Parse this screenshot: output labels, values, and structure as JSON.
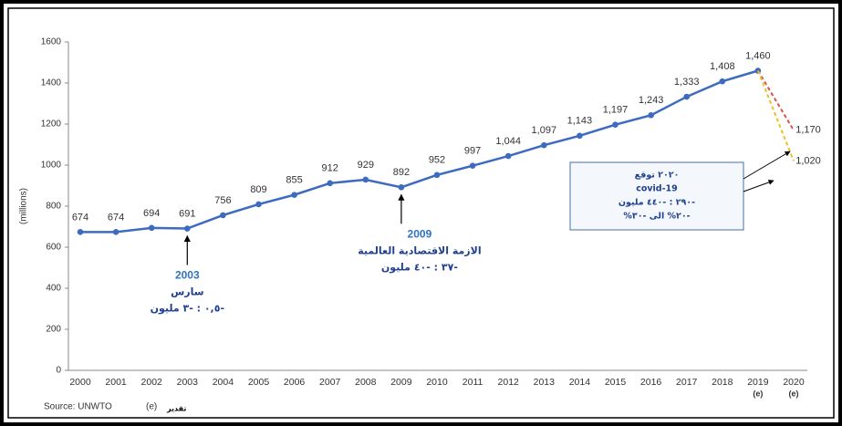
{
  "chart_data": {
    "type": "line",
    "y_label": "(millions)",
    "categories": [
      "2000",
      "2001",
      "2002",
      "2003",
      "2004",
      "2005",
      "2006",
      "2007",
      "2008",
      "2009",
      "2010",
      "2011",
      "2012",
      "2013",
      "2014",
      "2015",
      "2016",
      "2017",
      "2018",
      "2019",
      "2020"
    ],
    "category_notes": [
      null,
      null,
      null,
      null,
      null,
      null,
      null,
      null,
      null,
      null,
      null,
      null,
      null,
      null,
      null,
      null,
      null,
      null,
      null,
      "(e)",
      "(e)"
    ],
    "series": [
      {
        "color": "#3d6bbf",
        "values": [
          674,
          674,
          694,
          691,
          756,
          809,
          855,
          912,
          929,
          892,
          952,
          997,
          1044,
          1097,
          1143,
          1197,
          1243,
          1333,
          1408,
          1460,
          null
        ],
        "value_labels": [
          "674",
          "674",
          "694",
          "691",
          "756",
          "809",
          "855",
          "912",
          "929",
          "892",
          "952",
          "997",
          "1,044",
          "1,097",
          "1,143",
          "1,197",
          "1,243",
          "1,333",
          "1,408",
          "1,460",
          null
        ]
      },
      {
        "color": "#d9534f",
        "dashed": true,
        "values": [
          null,
          null,
          null,
          null,
          null,
          null,
          null,
          null,
          null,
          null,
          null,
          null,
          null,
          null,
          null,
          null,
          null,
          null,
          null,
          1460,
          1170
        ],
        "value_labels": [
          null,
          null,
          null,
          null,
          null,
          null,
          null,
          null,
          null,
          null,
          null,
          null,
          null,
          null,
          null,
          null,
          null,
          null,
          null,
          null,
          "1,170"
        ]
      },
      {
        "color": "#e8c229",
        "dashed": true,
        "values": [
          null,
          null,
          null,
          null,
          null,
          null,
          null,
          null,
          null,
          null,
          null,
          null,
          null,
          null,
          null,
          null,
          null,
          null,
          null,
          1460,
          1020
        ],
        "value_labels": [
          null,
          null,
          null,
          null,
          null,
          null,
          null,
          null,
          null,
          null,
          null,
          null,
          null,
          null,
          null,
          null,
          null,
          null,
          null,
          null,
          "1,020"
        ]
      }
    ],
    "ylim": [
      0,
      1600
    ],
    "yticks": [
      0,
      200,
      400,
      600,
      800,
      1000,
      1200,
      1400,
      1600
    ],
    "annotations": [
      {
        "year": "2003",
        "lines": [
          "سارس",
          "-٠,٥ : -٣ مليون"
        ]
      },
      {
        "year": "2009",
        "lines": [
          "الازمة الاقتصادية العالمية",
          "-٣٧ : -٤٠ مليون"
        ]
      }
    ],
    "forecast_box": [
      "٢٠٢٠ توقع",
      "covid-19",
      "-٢٩٠ : -٤٤٠ مليون",
      "-٢٠% الى -٣٠%"
    ],
    "source": "Source: UNWTO",
    "estimate_key": "(e)",
    "estimate_word": "تقدير"
  }
}
